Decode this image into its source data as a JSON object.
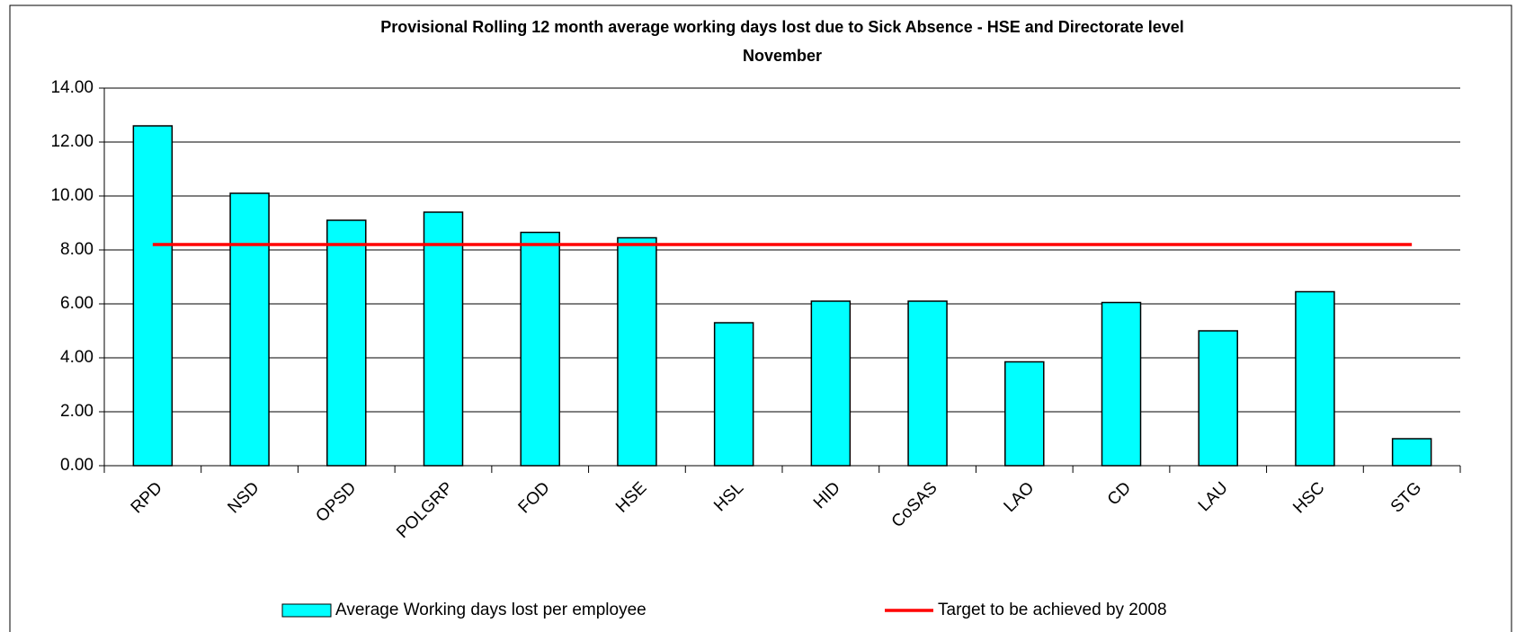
{
  "chart_data": {
    "type": "bar",
    "title": "Provisional Rolling 12 month average working days lost due to Sick Absence - HSE and Directorate level",
    "subtitle": "November",
    "categories": [
      "RPD",
      "NSD",
      "OPSD",
      "POLGRP",
      "FOD",
      "HSE",
      "HSL",
      "HID",
      "CoSAS",
      "LAO",
      "CD",
      "LAU",
      "HSC",
      "STG"
    ],
    "series": [
      {
        "name": "Average Working days lost per employee",
        "type": "bar",
        "color": "#00ffff",
        "values": [
          12.6,
          10.1,
          9.1,
          9.4,
          8.65,
          8.45,
          5.3,
          6.1,
          6.1,
          3.85,
          6.05,
          5.0,
          6.45,
          1.0
        ]
      },
      {
        "name": "Target to be achieved by 2008",
        "type": "line",
        "color": "#ff0000",
        "values": [
          8.2,
          8.2,
          8.2,
          8.2,
          8.2,
          8.2,
          8.2,
          8.2,
          8.2,
          8.2,
          8.2,
          8.2,
          8.2,
          8.2
        ]
      }
    ],
    "ylim": [
      0,
      14
    ],
    "yticks": [
      {
        "value": 0,
        "label": "0.00"
      },
      {
        "value": 2,
        "label": "2.00"
      },
      {
        "value": 4,
        "label": "4.00"
      },
      {
        "value": 6,
        "label": "6.00"
      },
      {
        "value": 8,
        "label": "8.00"
      },
      {
        "value": 10,
        "label": "10.00"
      },
      {
        "value": 12,
        "label": "12.00"
      },
      {
        "value": 14,
        "label": "14.00"
      }
    ],
    "grid": true,
    "legend": "bottom"
  }
}
